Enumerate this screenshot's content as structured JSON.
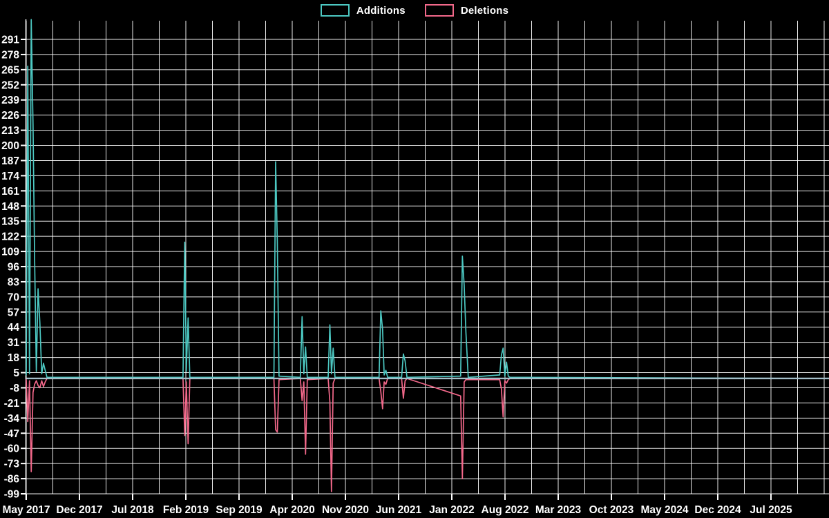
{
  "chart_data": {
    "type": "line",
    "title": "",
    "background_color": "#000000",
    "grid": true,
    "grid_color": "#ffffff",
    "zero_line_color": "#a4bec9",
    "legend": [
      {
        "name": "Additions",
        "color": "#4cc8c2"
      },
      {
        "name": "Deletions",
        "color": "#f2688a"
      }
    ],
    "x_axis": {
      "tick_labels": [
        "May 2017",
        "Dec 2017",
        "Jul 2018",
        "Feb 2019",
        "Sep 2019",
        "Apr 2020",
        "Nov 2020",
        "Jun 2021",
        "Jan 2022",
        "Aug 2022",
        "Mar 2023",
        "Oct 2023",
        "May 2024",
        "Dec 2024",
        "Jul 2025"
      ],
      "tick_interval_months": 7,
      "minor_grid_months": 3.5,
      "start": "2017-05-01",
      "end": "2025-12-15"
    },
    "y_axis": {
      "min": -99,
      "max": 291,
      "step": 13,
      "tick_labels": [
        "291",
        "278",
        "265",
        "252",
        "239",
        "226",
        "213",
        "200",
        "187",
        "174",
        "161",
        "148",
        "135",
        "122",
        "109",
        "96",
        "83",
        "70",
        "57",
        "44",
        "31",
        "18",
        "5",
        "-8",
        "-21",
        "-34",
        "-47",
        "-60",
        "-73",
        "-86",
        "-99"
      ]
    },
    "series": [
      {
        "name": "Additions",
        "color": "#4cc8c2",
        "points": [
          [
            "2017-05-01",
            3
          ],
          [
            "2017-05-07",
            268
          ],
          [
            "2017-05-14",
            4
          ],
          [
            "2017-05-21",
            308
          ],
          [
            "2017-05-28",
            218
          ],
          [
            "2017-06-04",
            103
          ],
          [
            "2017-06-11",
            6
          ],
          [
            "2017-06-18",
            77
          ],
          [
            "2017-06-25",
            48
          ],
          [
            "2017-07-02",
            4
          ],
          [
            "2017-07-09",
            13
          ],
          [
            "2017-07-16",
            7
          ],
          [
            "2017-07-23",
            1
          ],
          [
            "2019-01-20",
            1
          ],
          [
            "2019-01-27",
            117
          ],
          [
            "2019-02-03",
            6
          ],
          [
            "2019-02-10",
            52
          ],
          [
            "2019-02-17",
            1
          ],
          [
            "2020-01-19",
            1
          ],
          [
            "2020-01-26",
            186
          ],
          [
            "2020-02-02",
            118
          ],
          [
            "2020-02-09",
            2
          ],
          [
            "2020-05-03",
            1
          ],
          [
            "2020-05-10",
            53
          ],
          [
            "2020-05-17",
            4
          ],
          [
            "2020-05-24",
            27
          ],
          [
            "2020-05-31",
            1
          ],
          [
            "2020-08-23",
            1
          ],
          [
            "2020-08-30",
            46
          ],
          [
            "2020-09-06",
            4
          ],
          [
            "2020-09-13",
            26
          ],
          [
            "2020-09-20",
            1
          ],
          [
            "2021-03-14",
            1
          ],
          [
            "2021-03-21",
            58
          ],
          [
            "2021-03-28",
            42
          ],
          [
            "2021-04-04",
            3
          ],
          [
            "2021-04-11",
            7
          ],
          [
            "2021-04-18",
            1
          ],
          [
            "2021-06-13",
            1
          ],
          [
            "2021-06-20",
            21
          ],
          [
            "2021-06-27",
            15
          ],
          [
            "2021-07-04",
            1
          ],
          [
            "2022-02-06",
            2
          ],
          [
            "2022-02-13",
            105
          ],
          [
            "2022-02-20",
            80
          ],
          [
            "2022-02-27",
            40
          ],
          [
            "2022-03-06",
            1
          ],
          [
            "2022-07-10",
            3
          ],
          [
            "2022-07-17",
            20
          ],
          [
            "2022-07-24",
            26
          ],
          [
            "2022-07-31",
            2
          ],
          [
            "2022-08-07",
            14
          ],
          [
            "2022-08-14",
            2
          ],
          [
            "2022-08-21",
            1
          ],
          [
            "2025-12-15",
            0
          ]
        ]
      },
      {
        "name": "Deletions",
        "color": "#f2688a",
        "points": [
          [
            "2017-05-01",
            -1
          ],
          [
            "2017-05-07",
            -37
          ],
          [
            "2017-05-14",
            -2
          ],
          [
            "2017-05-21",
            -80
          ],
          [
            "2017-05-28",
            -12
          ],
          [
            "2017-06-04",
            -5
          ],
          [
            "2017-06-11",
            -2
          ],
          [
            "2017-06-18",
            -6
          ],
          [
            "2017-06-25",
            -8
          ],
          [
            "2017-07-02",
            -2
          ],
          [
            "2017-07-09",
            -7
          ],
          [
            "2017-07-16",
            -3
          ],
          [
            "2017-07-23",
            0
          ],
          [
            "2019-01-20",
            0
          ],
          [
            "2019-01-27",
            -49
          ],
          [
            "2019-02-03",
            -3
          ],
          [
            "2019-02-10",
            -56
          ],
          [
            "2019-02-17",
            0
          ],
          [
            "2020-01-19",
            0
          ],
          [
            "2020-01-26",
            -44
          ],
          [
            "2020-02-02",
            -46
          ],
          [
            "2020-02-09",
            -1
          ],
          [
            "2020-05-03",
            0
          ],
          [
            "2020-05-10",
            -19
          ],
          [
            "2020-05-17",
            -3
          ],
          [
            "2020-05-24",
            -65
          ],
          [
            "2020-05-31",
            -1
          ],
          [
            "2020-08-23",
            0
          ],
          [
            "2020-08-30",
            -20
          ],
          [
            "2020-09-06",
            -97
          ],
          [
            "2020-09-13",
            -4
          ],
          [
            "2020-09-20",
            0
          ],
          [
            "2021-03-14",
            0
          ],
          [
            "2021-03-21",
            -11
          ],
          [
            "2021-03-28",
            -26
          ],
          [
            "2021-04-04",
            -3
          ],
          [
            "2021-04-11",
            -5
          ],
          [
            "2021-04-18",
            0
          ],
          [
            "2021-06-13",
            0
          ],
          [
            "2021-06-20",
            -17
          ],
          [
            "2021-06-27",
            -2
          ],
          [
            "2021-07-04",
            0
          ],
          [
            "2022-02-06",
            -15
          ],
          [
            "2022-02-13",
            -86
          ],
          [
            "2022-02-20",
            -3
          ],
          [
            "2022-02-27",
            -1
          ],
          [
            "2022-07-10",
            -1
          ],
          [
            "2022-07-17",
            -9
          ],
          [
            "2022-07-24",
            -33
          ],
          [
            "2022-07-31",
            -2
          ],
          [
            "2022-08-07",
            -4
          ],
          [
            "2022-08-14",
            -1
          ],
          [
            "2022-08-21",
            0
          ],
          [
            "2025-12-15",
            0
          ]
        ]
      }
    ]
  }
}
